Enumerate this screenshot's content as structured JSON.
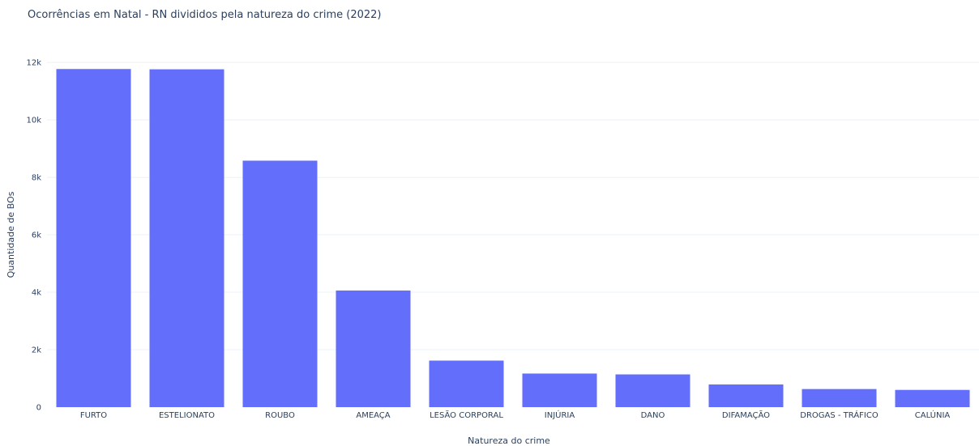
{
  "chart_data": {
    "type": "bar",
    "title": "Ocorrências em Natal - RN divididos pela natureza do crime (2022)",
    "xlabel": "Natureza do crime",
    "ylabel": "Quantidade de BOs",
    "categories": [
      "FURTO",
      "ESTELIONATO",
      "ROUBO",
      "AMEAÇA",
      "LESÃO CORPORAL",
      "INJÚRIA",
      "DANO",
      "DIFAMAÇÃO",
      "DROGAS - TRÁFICO",
      "CALÚNIA"
    ],
    "values": [
      11770,
      11760,
      8580,
      4060,
      1620,
      1170,
      1140,
      790,
      630,
      600
    ],
    "ylim": [
      0,
      12200
    ],
    "yticks": [
      0,
      2000,
      4000,
      6000,
      8000,
      10000,
      12000
    ],
    "ytick_labels": [
      "0",
      "2k",
      "4k",
      "6k",
      "8k",
      "10k",
      "12k"
    ],
    "bar_color": "#636efa",
    "grid": true,
    "legend": "none"
  }
}
